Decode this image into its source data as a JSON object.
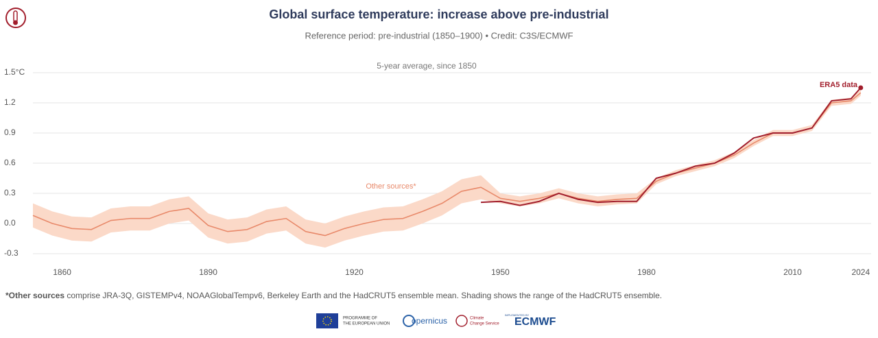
{
  "chart_data": {
    "type": "line",
    "title": "Global surface temperature: increase above pre-industrial",
    "subtitle": "Reference period: pre-industrial (1850–1900) • Credit: C3S/ECMWF",
    "inner_title": "5-year average, since 1850",
    "annotations": [
      "ERA5 data",
      "Other sources*"
    ],
    "footnote_bold": "*Other sources",
    "footnote_text": " comprise JRA-3Q, GISTEMPv4, NOAAGlobalTempv6, Berkeley Earth and the HadCRUT5 ensemble mean. Shading shows the range of the HadCRUT5 ensemble.",
    "logos": [
      "PROGRAMME OF",
      "THE EUROPEAN UNION",
      "opernicus",
      "Climate",
      "Change Service",
      "IMPLEMENTED BY",
      "ECMWF"
    ],
    "xlim": [
      1854,
      2026
    ],
    "ylim": [
      -0.35,
      1.5
    ],
    "xticks": [
      1860,
      1890,
      1920,
      1950,
      1980,
      2010,
      2024
    ],
    "yticks": [
      {
        "value": 1.5,
        "label": "1.5°C"
      },
      1.2,
      0.9,
      0.6,
      0.3,
      {
        "value": 0,
        "label": "0.0"
      },
      -0.3
    ],
    "grid": true,
    "band": {
      "color": "#fbd9c8",
      "x": [
        1854,
        1858,
        1862,
        1866,
        1870,
        1874,
        1878,
        1882,
        1886,
        1890,
        1894,
        1898,
        1902,
        1906,
        1910,
        1914,
        1918,
        1922,
        1926,
        1930,
        1934,
        1938,
        1942,
        1946,
        1950,
        1954,
        1958,
        1962,
        1966,
        1970,
        1974,
        1978,
        1982,
        1986,
        1990,
        1994,
        1998,
        2002,
        2006,
        2010,
        2014,
        2018,
        2022,
        2024
      ],
      "lower": [
        -0.04,
        -0.12,
        -0.17,
        -0.18,
        -0.09,
        -0.07,
        -0.07,
        0.0,
        0.03,
        -0.14,
        -0.2,
        -0.18,
        -0.1,
        -0.07,
        -0.2,
        -0.24,
        -0.17,
        -0.12,
        -0.08,
        -0.07,
        0.0,
        0.08,
        0.2,
        0.24,
        0.2,
        0.17,
        0.2,
        0.25,
        0.2,
        0.17,
        0.19,
        0.2,
        0.39,
        0.47,
        0.52,
        0.57,
        0.65,
        0.77,
        0.87,
        0.87,
        0.92,
        1.17,
        1.19,
        1.27
      ],
      "upper": [
        0.2,
        0.12,
        0.07,
        0.06,
        0.15,
        0.17,
        0.17,
        0.24,
        0.27,
        0.1,
        0.04,
        0.06,
        0.14,
        0.17,
        0.04,
        0.0,
        0.07,
        0.12,
        0.16,
        0.17,
        0.24,
        0.32,
        0.44,
        0.48,
        0.3,
        0.27,
        0.3,
        0.35,
        0.3,
        0.27,
        0.29,
        0.3,
        0.45,
        0.53,
        0.58,
        0.63,
        0.71,
        0.83,
        0.93,
        0.93,
        0.98,
        1.23,
        1.25,
        1.33
      ]
    },
    "series": [
      {
        "color": "#e8896a",
        "x": [
          1854,
          1858,
          1862,
          1866,
          1870,
          1874,
          1878,
          1882,
          1886,
          1890,
          1894,
          1898,
          1902,
          1906,
          1910,
          1914,
          1918,
          1922,
          1926,
          1930,
          1934,
          1938,
          1942,
          1946,
          1950,
          1954,
          1958,
          1962,
          1966,
          1970,
          1974,
          1978,
          1982,
          1986,
          1990,
          1994,
          1998,
          2002,
          2006,
          2010,
          2014,
          2018,
          2022,
          2024
        ],
        "values": [
          0.08,
          0.0,
          -0.05,
          -0.06,
          0.03,
          0.05,
          0.05,
          0.12,
          0.15,
          -0.02,
          -0.08,
          -0.06,
          0.02,
          0.05,
          -0.08,
          -0.12,
          -0.05,
          0.0,
          0.04,
          0.05,
          0.12,
          0.2,
          0.32,
          0.36,
          0.25,
          0.22,
          0.25,
          0.3,
          0.25,
          0.22,
          0.24,
          0.25,
          0.42,
          0.5,
          0.55,
          0.6,
          0.68,
          0.8,
          0.9,
          0.9,
          0.95,
          1.2,
          1.22,
          1.3
        ]
      },
      {
        "color": "#a11d2b",
        "x": [
          1946,
          1950,
          1954,
          1958,
          1962,
          1966,
          1970,
          1974,
          1978,
          1982,
          1986,
          1990,
          1994,
          1998,
          2002,
          2006,
          2010,
          2014,
          2018,
          2022,
          2024
        ],
        "values": [
          0.21,
          0.22,
          0.18,
          0.22,
          0.3,
          0.24,
          0.21,
          0.22,
          0.22,
          0.45,
          0.5,
          0.57,
          0.6,
          0.7,
          0.85,
          0.9,
          0.9,
          0.95,
          1.22,
          1.24,
          1.35
        ]
      }
    ]
  }
}
